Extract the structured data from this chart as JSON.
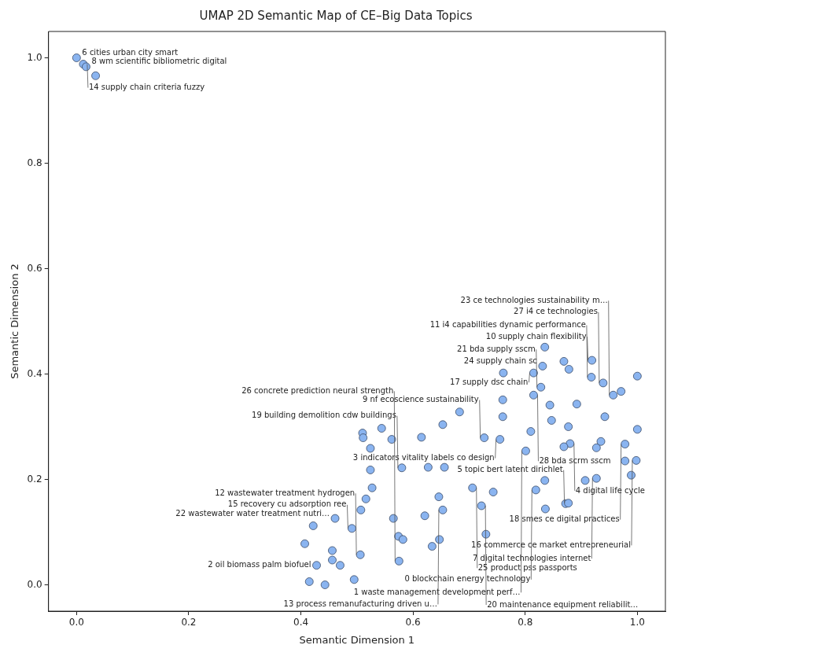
{
  "chart_data": {
    "type": "scatter",
    "title": "UMAP 2D Semantic Map of CE–Big Data Topics",
    "xlabel": "Semantic Dimension 1",
    "ylabel": "Semantic Dimension 2",
    "color": "#8ab4f0",
    "marker": "circle",
    "grid": false,
    "legend": false,
    "xlim": [
      -0.05,
      1.05
    ],
    "ylim": [
      -0.05,
      1.05
    ],
    "xticks": [
      {
        "value": 0,
        "label": "0.0"
      },
      {
        "value": 0.2,
        "label": "0.2"
      },
      {
        "value": 0.4,
        "label": "0.4"
      },
      {
        "value": 0.6,
        "label": "0.6"
      },
      {
        "value": 0.8,
        "label": "0.8"
      },
      {
        "value": 1,
        "label": "1.0"
      }
    ],
    "yticks": [
      {
        "value": 0,
        "label": "0.0"
      },
      {
        "value": 0.2,
        "label": "0.2"
      },
      {
        "value": 0.4,
        "label": "0.4"
      },
      {
        "value": 0.6,
        "label": "0.6"
      },
      {
        "value": 0.8,
        "label": "0.8"
      },
      {
        "value": 1,
        "label": "1.0"
      }
    ],
    "x": [
      0,
      0.012,
      0.017,
      0.034,
      0.835,
      0.869,
      0.919,
      0.831,
      0.878,
      0.761,
      0.815,
      0.918,
      1.0,
      0.939,
      0.828,
      0.971,
      0.815,
      0.957,
      0.76,
      0.844,
      0.892,
      0.683,
      0.76,
      0.942,
      0.847,
      0.653,
      0.544,
      0.877,
      1.0,
      0.51,
      0.81,
      0.511,
      0.615,
      0.562,
      0.727,
      0.755,
      0.935,
      0.88,
      0.978,
      0.524,
      0.869,
      0.927,
      0.801,
      0.978,
      0.998,
      0.524,
      0.58,
      0.627,
      0.656,
      0.989,
      0.927,
      0.907,
      0.835,
      0.527,
      0.706,
      0.819,
      0.743,
      0.516,
      0.646,
      0.872,
      0.877,
      0.722,
      0.653,
      0.836,
      0.507,
      0.461,
      0.565,
      0.621,
      0.422,
      0.491,
      0.574,
      0.582,
      0.647,
      0.73,
      0.407,
      0.634,
      0.456,
      0.506,
      0.575,
      0.428,
      0.47,
      0.456,
      0.415,
      0.443,
      0.495
    ],
    "values": [
      1.0,
      0.988,
      0.983,
      0.966,
      0.451,
      0.424,
      0.426,
      0.415,
      0.409,
      0.402,
      0.402,
      0.394,
      0.396,
      0.383,
      0.375,
      0.367,
      0.36,
      0.36,
      0.351,
      0.341,
      0.343,
      0.328,
      0.319,
      0.319,
      0.312,
      0.304,
      0.297,
      0.3,
      0.295,
      0.288,
      0.291,
      0.279,
      0.28,
      0.276,
      0.279,
      0.276,
      0.272,
      0.268,
      0.267,
      0.259,
      0.262,
      0.26,
      0.254,
      0.235,
      0.236,
      0.218,
      0.222,
      0.223,
      0.223,
      0.208,
      0.202,
      0.198,
      0.198,
      0.184,
      0.184,
      0.18,
      0.176,
      0.163,
      0.167,
      0.154,
      0.155,
      0.15,
      0.142,
      0.144,
      0.142,
      0.126,
      0.126,
      0.131,
      0.112,
      0.107,
      0.092,
      0.086,
      0.086,
      0.096,
      0.078,
      0.073,
      0.065,
      0.057,
      0.045,
      0.037,
      0.037,
      0.047,
      0.006,
      0,
      0.01
    ],
    "annotations": [
      {
        "text": "6 cities urban city smart",
        "x": 0,
        "y": 1.0
      },
      {
        "text": "14 supply chain criteria fuzzy",
        "x": 0.012,
        "y": 0.988
      },
      {
        "text": "8 wm scientific bibliometric digital",
        "x": 0.017,
        "y": 0.983
      },
      {
        "text": "10 supply chain flexibility",
        "x": 0.919,
        "y": 0.426
      },
      {
        "text": "24 supply chain sc",
        "x": 0.831,
        "y": 0.415
      },
      {
        "text": "17 supply dsc chain",
        "x": 0.815,
        "y": 0.402
      },
      {
        "text": "11 i4 capabilities dynamic performance",
        "x": 0.918,
        "y": 0.394
      },
      {
        "text": "27 i4 ce technologies",
        "x": 0.939,
        "y": 0.383
      },
      {
        "text": "21 bda supply sscm",
        "x": 0.828,
        "y": 0.375
      },
      {
        "text": "28 bda scrm sscm",
        "x": 0.815,
        "y": 0.36
      },
      {
        "text": "23 ce technologies sustainability m…",
        "x": 0.957,
        "y": 0.36
      },
      {
        "text": "9 nf ecoscience sustainability",
        "x": 0.727,
        "y": 0.279
      },
      {
        "text": "3 indicators vitality labels co design",
        "x": 0.755,
        "y": 0.276
      },
      {
        "text": "4 digital life cycle",
        "x": 0.88,
        "y": 0.268
      },
      {
        "text": "18 smes ce digital practices",
        "x": 0.978,
        "y": 0.267
      },
      {
        "text": "1 waste management development perf…",
        "x": 0.801,
        "y": 0.254
      },
      {
        "text": "16 commerce ce market entrepreneurial",
        "x": 0.998,
        "y": 0.236
      },
      {
        "text": "19 building demolition cdw buildings",
        "x": 0.58,
        "y": 0.222
      },
      {
        "text": "7 digital technologies internet",
        "x": 0.927,
        "y": 0.202
      },
      {
        "text": "25 product pss passports",
        "x": 0.706,
        "y": 0.184
      },
      {
        "text": "0 blockchain energy technology",
        "x": 0.819,
        "y": 0.18
      },
      {
        "text": "5 topic bert latent dirichlet",
        "x": 0.877,
        "y": 0.155
      },
      {
        "text": "20 maintenance equipment reliabilit…",
        "x": 0.722,
        "y": 0.15
      },
      {
        "text": "13 process remanufacturing driven u…",
        "x": 0.653,
        "y": 0.142
      },
      {
        "text": "22 wastewater water treatment nutri…",
        "x": 0.461,
        "y": 0.126
      },
      {
        "text": "15 recovery cu adsorption ree",
        "x": 0.491,
        "y": 0.107
      },
      {
        "text": "12 wastewater treatment hydrogen",
        "x": 0.506,
        "y": 0.057
      },
      {
        "text": "26 concrete prediction neural strength",
        "x": 0.575,
        "y": 0.045
      },
      {
        "text": "2 oil biomass palm biofuel",
        "x": 0.428,
        "y": 0.037
      }
    ]
  }
}
